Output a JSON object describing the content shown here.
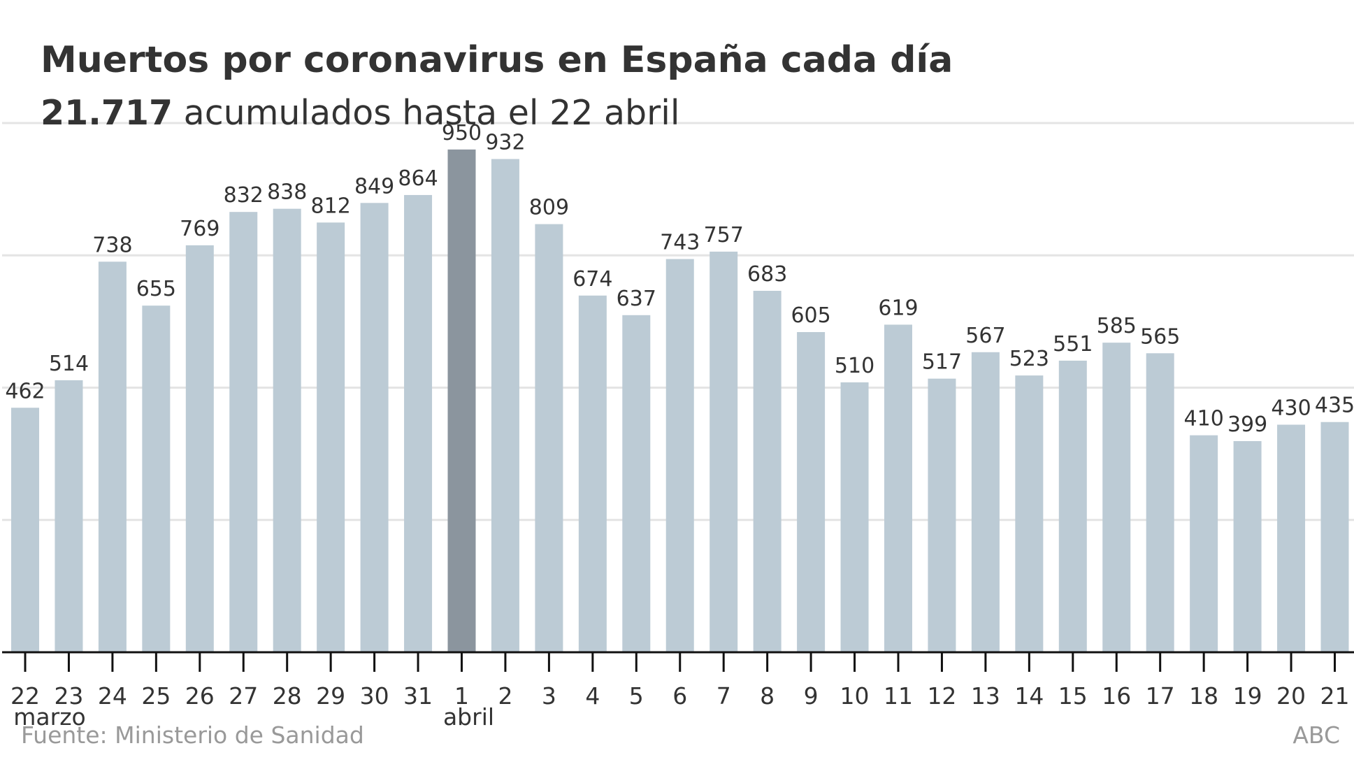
{
  "chart_data": {
    "type": "bar",
    "title": "Muertos por coronavirus en España cada día",
    "subtitle_strong": "21.717",
    "subtitle_rest": " acumulados hasta el 22 abril",
    "xlabel": "",
    "ylabel": "",
    "ylim": [
      0,
      1000
    ],
    "gridlines": [
      250,
      500,
      750,
      1000
    ],
    "grid": true,
    "categories": [
      "22",
      "23",
      "24",
      "25",
      "26",
      "27",
      "28",
      "29",
      "30",
      "31",
      "1",
      "2",
      "3",
      "4",
      "5",
      "6",
      "7",
      "8",
      "9",
      "10",
      "11",
      "12",
      "13",
      "14",
      "15",
      "16",
      "17",
      "18",
      "19",
      "20",
      "21"
    ],
    "month_labels": [
      {
        "at_category_index": 0,
        "label": "marzo"
      },
      {
        "at_category_index": 10,
        "label": "abril"
      }
    ],
    "values": [
      462,
      514,
      738,
      655,
      769,
      832,
      838,
      812,
      849,
      864,
      950,
      932,
      809,
      674,
      637,
      743,
      757,
      683,
      605,
      510,
      619,
      517,
      567,
      523,
      551,
      585,
      565,
      410,
      399,
      430,
      435
    ],
    "highlight_index": 10,
    "colors": {
      "bar": "#bccbd5",
      "highlight": "#8b959e",
      "text": "#333333",
      "grid": "#e4e4e4",
      "footer": "#999999"
    },
    "source": "Fuente: Ministerio de Sanidad",
    "credit": "ABC"
  }
}
